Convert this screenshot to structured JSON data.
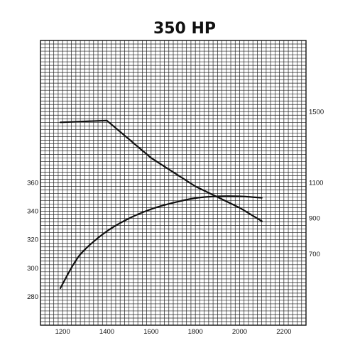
{
  "chart_data": {
    "type": "line",
    "title": "350 HP",
    "x_ticks": [
      "1200",
      "1400",
      "1600",
      "1800",
      "2000",
      "2200"
    ],
    "xlim": [
      1100,
      2300
    ],
    "right_axis": {
      "ticks": [
        "1500",
        "1100",
        "900",
        "700"
      ],
      "values": [
        1500,
        1100,
        900,
        700
      ],
      "lim": [
        300,
        1900
      ]
    },
    "left_axis": {
      "ticks": [
        "360",
        "340",
        "320",
        "300",
        "280"
      ],
      "values": [
        360,
        340,
        320,
        300,
        280
      ],
      "lim": [
        260,
        460
      ]
    },
    "grid": true,
    "series": [
      {
        "axis": "right",
        "x": [
          1190,
          1400,
          1600,
          1800,
          2000,
          2100
        ],
        "values": [
          1440,
          1450,
          1240,
          1080,
          960,
          885
        ]
      },
      {
        "axis": "left",
        "x": [
          1190,
          1250,
          1300,
          1400,
          1500,
          1600,
          1700,
          1800,
          1900,
          2000,
          2100
        ],
        "values": [
          286,
          303,
          313,
          326,
          335,
          341.5,
          346,
          349.3,
          350.5,
          350.5,
          349.5
        ]
      }
    ],
    "colors": {
      "line": "#111111",
      "grid": "#222222"
    }
  }
}
